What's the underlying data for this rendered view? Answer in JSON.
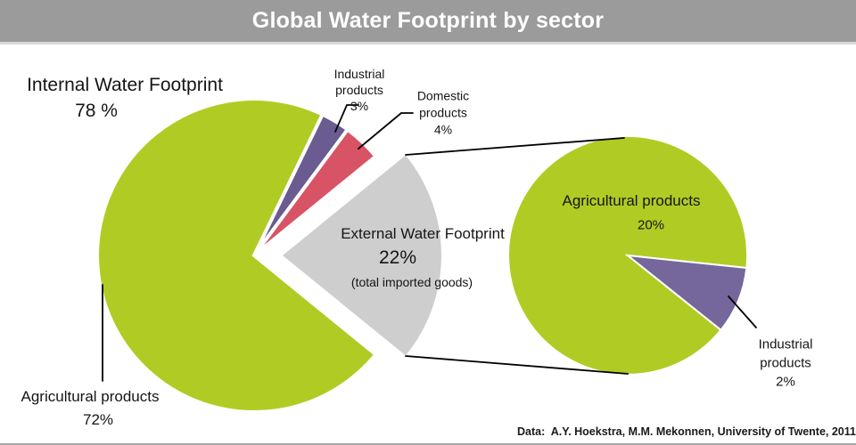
{
  "header": {
    "title": "Global Water Footprint by sector"
  },
  "footer": {
    "source": "Data:  A.Y. Hoekstra, M.M. Mekonnen, University of Twente, 2011"
  },
  "colors": {
    "header_bg": "#9b9b9b",
    "agricultural_green": "#b0cc24",
    "industrial_purple": "#6a5c90",
    "industrial_purple_right": "#75679c",
    "domestic_red": "#d85365",
    "external_gray": "#cecece",
    "text": "#151515",
    "annotation_line": "#000000"
  },
  "labels": {
    "internal": {
      "title": "Internal Water Footprint",
      "pct": "78 %"
    },
    "industrial": {
      "line1": "Industrial",
      "line2": "products",
      "pct": "3%"
    },
    "domestic": {
      "line1": "Domestic",
      "line2": "products",
      "pct": "4%"
    },
    "agricultural": {
      "line1": "Agricultural products",
      "pct": "72%"
    },
    "external": {
      "title": "External Water Footprint",
      "pct": "22%",
      "note": "(total imported goods)"
    },
    "right_agricultural": {
      "line1": "Agricultural products",
      "pct": "20%"
    },
    "right_industrial": {
      "line1": "Industrial",
      "line2": "products",
      "pct": "2%"
    }
  },
  "chart_data": [
    {
      "type": "pie",
      "title": "Internal Water Footprint",
      "subtitle": "78 %",
      "slices": [
        {
          "label": "Agricultural products",
          "value": 72,
          "color": "#b0cc24"
        },
        {
          "label": "Industrial products",
          "value": 3,
          "color": "#6a5c90"
        },
        {
          "label": "Domestic products",
          "value": 4,
          "color": "#d85365"
        },
        {
          "label": "External Water Footprint (total imported goods)",
          "value": 22,
          "color": "#cecece",
          "exploded": true
        }
      ]
    },
    {
      "type": "pie",
      "title": "External Water Footprint",
      "subtitle": "22%",
      "slices": [
        {
          "label": "Agricultural products",
          "value": 20,
          "color": "#b0cc24"
        },
        {
          "label": "Industrial products",
          "value": 2,
          "color": "#75679c"
        }
      ]
    }
  ]
}
